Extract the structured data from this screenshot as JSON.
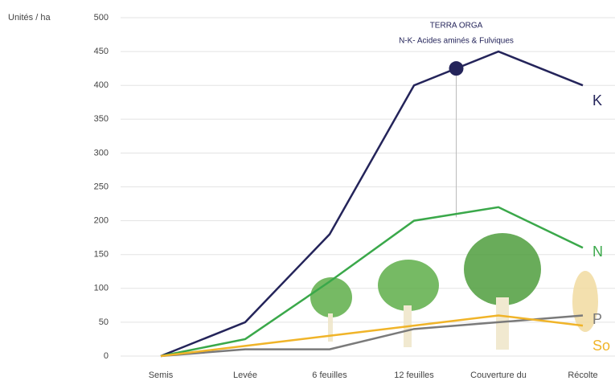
{
  "chart_data": {
    "type": "line",
    "y_label": "Unités / ha",
    "categories": [
      "Semis",
      "Levée",
      "6 feuilles",
      "12 feuilles",
      "Couverture du",
      "Récolte"
    ],
    "series": [
      {
        "name": "K",
        "color": "#24245a",
        "values": [
          0,
          50,
          180,
          400,
          450,
          400
        ]
      },
      {
        "name": "N",
        "color": "#3aa84a",
        "values": [
          0,
          25,
          110,
          200,
          220,
          160
        ]
      },
      {
        "name": "P",
        "color": "#7a7a7a",
        "values": [
          0,
          10,
          10,
          40,
          50,
          60
        ]
      },
      {
        "name": "So",
        "color": "#f0b429",
        "values": [
          0,
          15,
          30,
          45,
          60,
          45
        ]
      }
    ],
    "annotation": [
      "TERRA ORGA",
      "N-K- Acides aminés & Fulviques"
    ],
    "ylim": [
      0,
      500
    ],
    "yticks": [
      0,
      50,
      100,
      150,
      200,
      250,
      300,
      350,
      400,
      450,
      500
    ],
    "grid": true
  }
}
